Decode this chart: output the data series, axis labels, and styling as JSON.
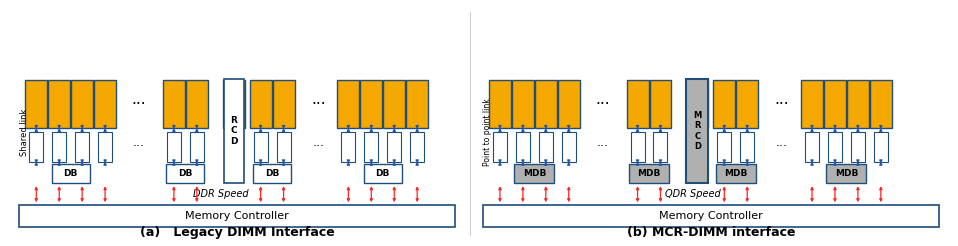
{
  "fig_width": 9.58,
  "fig_height": 2.46,
  "dpi": 100,
  "bg_color": "#ffffff",
  "gold_color": "#F5A800",
  "blue_edge": "#1F4E79",
  "white_fill": "#ffffff",
  "gray_fill": "#B0B0B0",
  "red_col": "#FF2222",
  "blue_arr": "#2255AA",
  "left_title": "(a)   Legacy DIMM Interface",
  "right_title": "(b) MCR-DIMM interface",
  "left_label": "Shared link",
  "right_label": "Point to point link",
  "left_speed": "DDR Speed",
  "right_speed": "QDR Speed",
  "mc_label": "Memory Controller",
  "rcd_label": "R\nC\nD",
  "mrcd_label": "M\nR\nC\nD",
  "db_label": "DB",
  "mdb_label": "MDB"
}
